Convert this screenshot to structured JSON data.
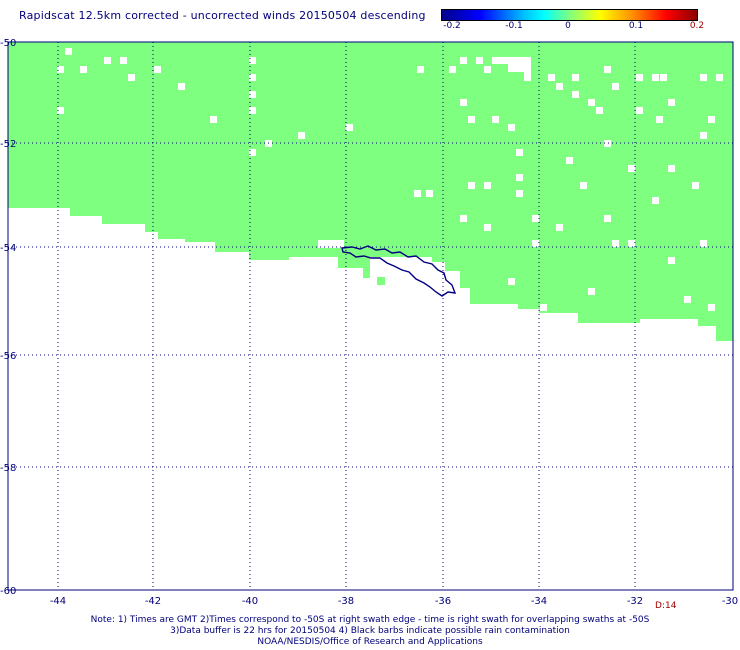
{
  "title": "Rapidscat 12.5km corrected - uncorrected winds 20150504 descending",
  "colorbar": {
    "labels": [
      "-0.2",
      "-0.1",
      "0",
      "0.1",
      "0.2"
    ],
    "colors": [
      "#00008b",
      "#0000ff",
      "#00bfff",
      "#00ffff",
      "#7fff7f",
      "#ffff00",
      "#ff8c00",
      "#ff0000",
      "#8b0000"
    ]
  },
  "map": {
    "lat_labels": [
      "-50",
      "-52",
      "-54",
      "-56",
      "-58",
      "-60"
    ],
    "lon_labels": [
      "-44",
      "-42",
      "-40",
      "-38",
      "-36",
      "-34",
      "-32",
      "-30"
    ],
    "lon_range": [
      -44.9,
      -30.0
    ],
    "lat_range": [
      -60.0,
      -50.0
    ],
    "swath_color": "#7fff7f",
    "coast_color": "#000080",
    "grid": "dotted",
    "island": "South Georgia"
  },
  "code_label": "D:14",
  "notes": [
    "Note: 1) Times are GMT 2)Times correspond to -50S at right swath edge - time is right swath for overlapping swaths at -50S",
    "3)Data buffer is 22 hrs for 20150504 4) Black barbs indicate possible rain contamination",
    "NOAA/NESDIS/Office of Research and Applications"
  ]
}
